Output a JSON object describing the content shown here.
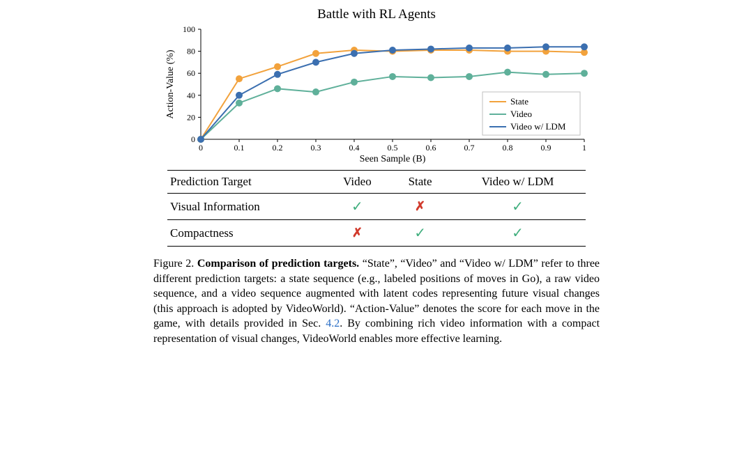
{
  "chart": {
    "type": "line",
    "title": "Battle with RL Agents",
    "title_fontsize": 19,
    "xlabel": "Seen Sample (B)",
    "ylabel": "Action-Value (%)",
    "label_fontsize": 14,
    "tick_fontsize": 12,
    "xlim": [
      0,
      1
    ],
    "ylim": [
      0,
      100
    ],
    "xticks": [
      0,
      0.1,
      0.2,
      0.3,
      0.4,
      0.5,
      0.6,
      0.7,
      0.8,
      0.9,
      1
    ],
    "yticks": [
      0,
      20,
      40,
      60,
      80,
      100
    ],
    "background_color": "#ffffff",
    "axis_color": "#000000",
    "marker_size": 5,
    "line_width": 2,
    "legend": {
      "position": "lower-right",
      "items": [
        "State",
        "Video",
        "Video w/ LDM"
      ],
      "border_color": "#bfbfbf"
    },
    "series": [
      {
        "name": "State",
        "color": "#f2a23c",
        "x": [
          0,
          0.1,
          0.2,
          0.3,
          0.4,
          0.5,
          0.6,
          0.7,
          0.8,
          0.9,
          1
        ],
        "y": [
          0,
          55,
          66,
          78,
          81,
          80,
          81,
          81,
          80,
          80,
          79
        ]
      },
      {
        "name": "Video",
        "color": "#5fb09a",
        "x": [
          0,
          0.1,
          0.2,
          0.3,
          0.4,
          0.5,
          0.6,
          0.7,
          0.8,
          0.9,
          1
        ],
        "y": [
          0,
          33,
          46,
          43,
          52,
          57,
          56,
          57,
          61,
          59,
          60
        ]
      },
      {
        "name": "Video w/ LDM",
        "color": "#3b6fb0",
        "x": [
          0,
          0.1,
          0.2,
          0.3,
          0.4,
          0.5,
          0.6,
          0.7,
          0.8,
          0.9,
          1
        ],
        "y": [
          0,
          40,
          59,
          70,
          78,
          81,
          82,
          83,
          83,
          84,
          84
        ]
      }
    ]
  },
  "table": {
    "columns": [
      "Prediction Target",
      "Video",
      "State",
      "Video w/ LDM"
    ],
    "rows": [
      {
        "label": "Visual Information",
        "cells": [
          "check",
          "cross",
          "check"
        ]
      },
      {
        "label": "Compactness",
        "cells": [
          "cross",
          "check",
          "check"
        ]
      }
    ],
    "check_color": "#3fae7d",
    "cross_color": "#d13a2c"
  },
  "caption": {
    "fig_label": "Figure 2.",
    "bold_title": "Comparison of prediction targets.",
    "body_pre": " “State”, “Video” and “Video w/ LDM” refer to three different prediction targets: a state sequence (e.g., labeled positions of moves in Go), a raw video sequence, and a video sequence augmented with latent codes representing future visual changes (this approach is adopted by VideoWorld). “Action-Value” denotes the score for each move in the game, with details provided in Sec. ",
    "link_text": "4.2",
    "body_post": ". By combining rich video information with a compact representation of visual changes, VideoWorld enables more effective learning.",
    "link_color": "#2a6ec6"
  }
}
